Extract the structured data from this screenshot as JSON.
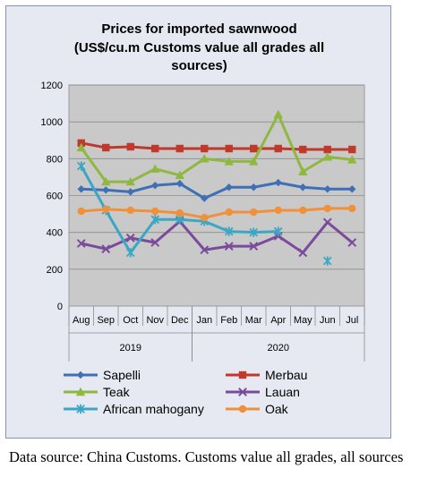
{
  "chart_data": {
    "type": "line",
    "title": "Prices for imported sawnwood",
    "subtitle": "(US$/cu.m Customs value all grades all sources)",
    "categories": [
      "Aug",
      "Sep",
      "Oct",
      "Nov",
      "Dec",
      "Jan",
      "Feb",
      "Mar",
      "Apr",
      "May",
      "Jun",
      "Jul"
    ],
    "year_groups": [
      {
        "label": "2019",
        "start": 0,
        "end": 4
      },
      {
        "label": "2020",
        "start": 5,
        "end": 11
      }
    ],
    "ylim": [
      0,
      1200
    ],
    "yticks": [
      0,
      200,
      400,
      600,
      800,
      1000,
      1200
    ],
    "grid": true,
    "legend_position": "bottom",
    "series": [
      {
        "name": "Sapelli",
        "color": "#3f6fb5",
        "marker": "diamond",
        "values": [
          635,
          630,
          620,
          655,
          665,
          585,
          645,
          645,
          670,
          645,
          635,
          635
        ]
      },
      {
        "name": "Merbau",
        "color": "#c0392b",
        "marker": "square",
        "values": [
          885,
          860,
          865,
          855,
          855,
          855,
          855,
          855,
          855,
          850,
          850,
          850
        ]
      },
      {
        "name": "Teak",
        "color": "#8fb83f",
        "marker": "triangle",
        "values": [
          860,
          675,
          675,
          745,
          710,
          800,
          785,
          785,
          1040,
          730,
          810,
          795
        ]
      },
      {
        "name": "Lauan",
        "color": "#7a4b9a",
        "marker": "x",
        "values": [
          340,
          310,
          370,
          345,
          460,
          305,
          325,
          325,
          380,
          290,
          455,
          345
        ]
      },
      {
        "name": "African mahogany",
        "color": "#3aa7c4",
        "marker": "star",
        "values": [
          760,
          520,
          290,
          470,
          470,
          460,
          405,
          400,
          405,
          null,
          245,
          null
        ]
      },
      {
        "name": "Oak",
        "color": "#f0913a",
        "marker": "circle",
        "values": [
          515,
          525,
          520,
          515,
          505,
          480,
          510,
          510,
          520,
          520,
          530,
          530
        ]
      }
    ]
  },
  "caption": "Data source: China Customs. Customs value all grades, all sources"
}
